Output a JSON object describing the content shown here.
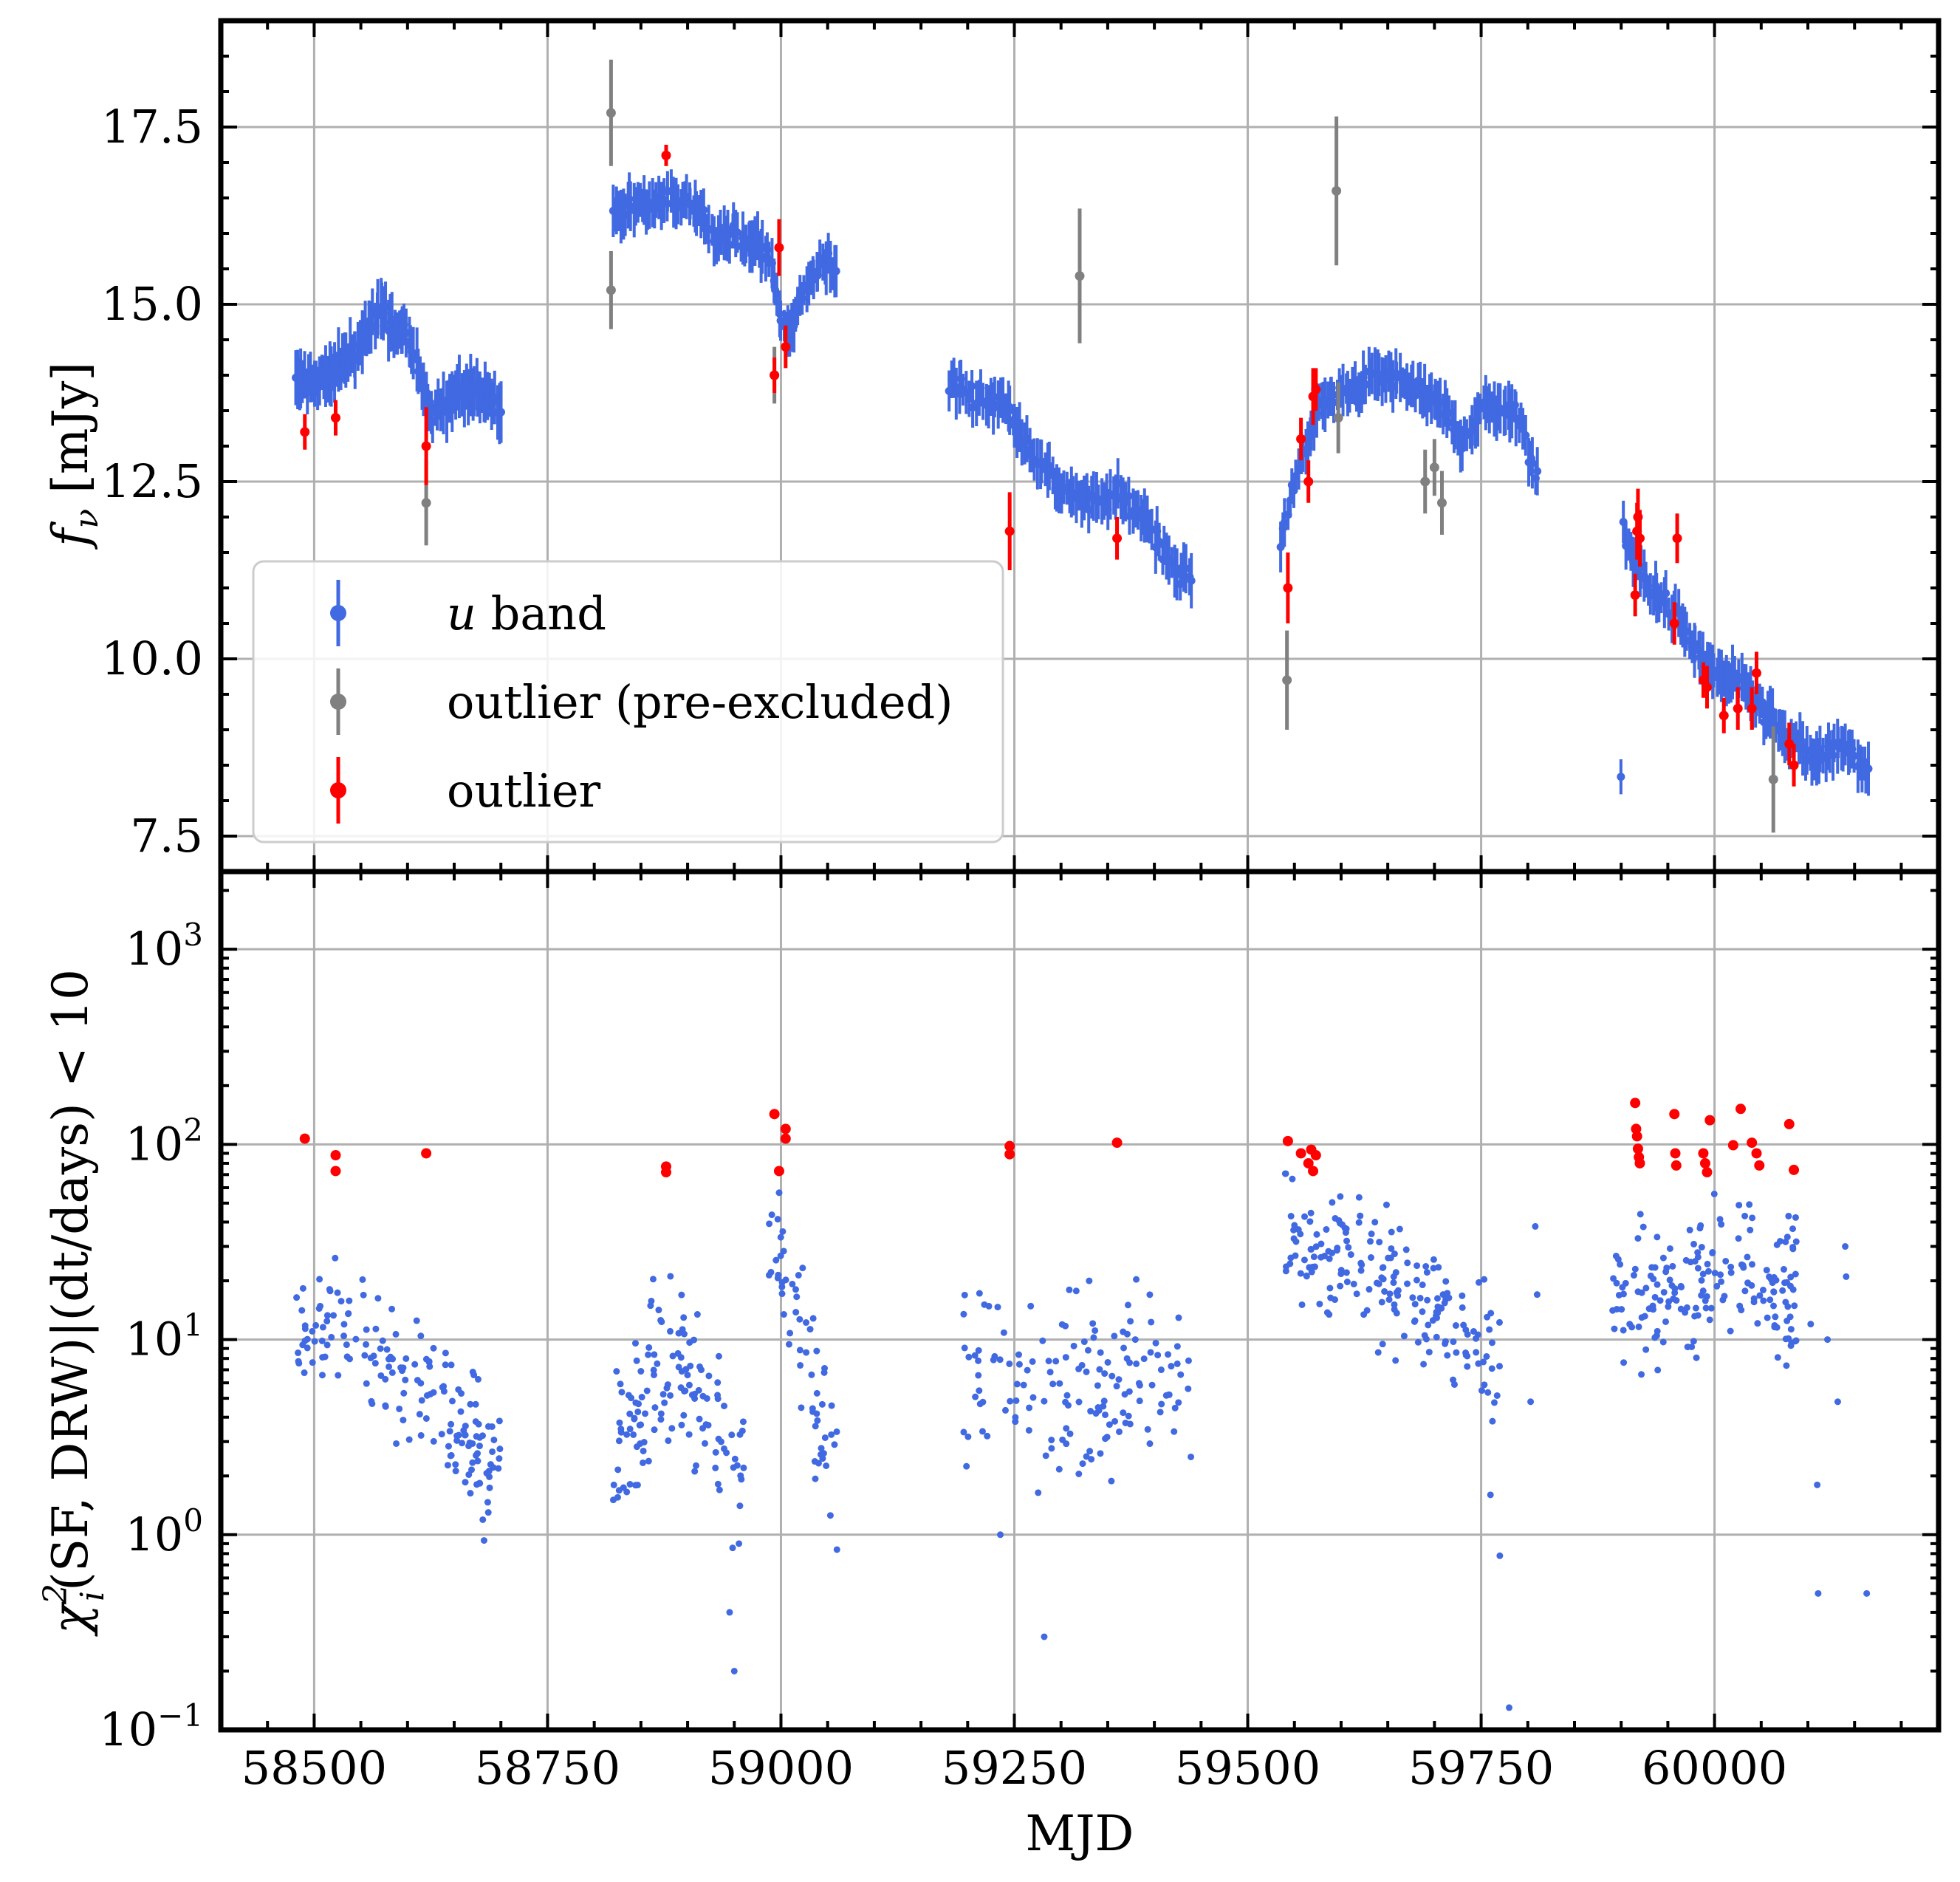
{
  "chart_data": [
    {
      "type": "scatter",
      "panel": "top",
      "ylabel_base": "f",
      "ylabel_sub": "ν",
      "ylabel_unit": "[mJy]",
      "ylim": [
        7.0,
        19.0
      ],
      "yticks": [
        7.5,
        10.0,
        12.5,
        15.0,
        17.5
      ],
      "ytick_labels": [
        "7.5",
        "10.0",
        "12.5",
        "15.0",
        "17.5"
      ],
      "grid": true,
      "legend_location": "lower-left",
      "legend": [
        {
          "label_italic": "u",
          "label": " band",
          "color": "#4169e1"
        },
        {
          "label_italic": "",
          "label": "outlier (pre-excluded)",
          "color": "#808080"
        },
        {
          "label_italic": "",
          "label": "outlier",
          "color": "#ff0000"
        }
      ],
      "segments": [
        {
          "series": "u band",
          "x0": 58480,
          "x1": 58700,
          "knots": [
            [
              58480,
              13.9
            ],
            [
              58500,
              13.9
            ],
            [
              58520,
              14.0
            ],
            [
              58545,
              14.4
            ],
            [
              58570,
              14.9
            ],
            [
              58600,
              14.5
            ],
            [
              58625,
              13.5
            ],
            [
              58650,
              13.7
            ],
            [
              58675,
              13.8
            ],
            [
              58700,
              13.5
            ]
          ],
          "err": 0.35,
          "n": 110
        },
        {
          "series": "u band",
          "x0": 58820,
          "x1": 59060,
          "knots": [
            [
              58820,
              16.3
            ],
            [
              58860,
              16.4
            ],
            [
              58900,
              16.5
            ],
            [
              58930,
              16.0
            ],
            [
              58970,
              15.9
            ],
            [
              58990,
              15.6
            ],
            [
              59000,
              14.7
            ],
            [
              59010,
              14.6
            ],
            [
              59025,
              15.2
            ],
            [
              59045,
              15.6
            ],
            [
              59060,
              15.4
            ]
          ],
          "err": 0.3,
          "n": 110
        },
        {
          "series": "u band",
          "x0": 59180,
          "x1": 59440,
          "knots": [
            [
              59180,
              13.9
            ],
            [
              59210,
              13.7
            ],
            [
              59240,
              13.6
            ],
            [
              59270,
              12.9
            ],
            [
              59300,
              12.4
            ],
            [
              59330,
              12.2
            ],
            [
              59360,
              12.3
            ],
            [
              59390,
              12.0
            ],
            [
              59420,
              11.3
            ],
            [
              59440,
              11.1
            ]
          ],
          "err": 0.3,
          "n": 100
        },
        {
          "series": "u band",
          "x0": 59535,
          "x1": 59810,
          "knots": [
            [
              59535,
              11.6
            ],
            [
              59545,
              12.2
            ],
            [
              59560,
              13.0
            ],
            [
              59580,
              13.6
            ],
            [
              59610,
              13.8
            ],
            [
              59640,
              14.0
            ],
            [
              59670,
              13.9
            ],
            [
              59700,
              13.7
            ],
            [
              59730,
              13.1
            ],
            [
              59760,
              13.6
            ],
            [
              59790,
              13.4
            ],
            [
              59810,
              12.6
            ]
          ],
          "err": 0.3,
          "n": 115
        },
        {
          "series": "u band",
          "x0": 59900,
          "x1": 60165,
          "knots": [
            [
              59900,
              11.8
            ],
            [
              59930,
              11.0
            ],
            [
              59960,
              10.6
            ],
            [
              59990,
              9.9
            ],
            [
              60020,
              9.7
            ],
            [
              60050,
              9.3
            ],
            [
              60080,
              8.8
            ],
            [
              60110,
              8.6
            ],
            [
              60140,
              8.8
            ],
            [
              60165,
              8.3
            ]
          ],
          "err": 0.3,
          "n": 110
        }
      ],
      "outliers_pre_excluded": [
        {
          "x": 58620,
          "y": 12.2,
          "err": 0.6
        },
        {
          "x": 58818,
          "y": 17.7,
          "err": 0.75
        },
        {
          "x": 58818,
          "y": 15.2,
          "err": 0.55
        },
        {
          "x": 58993,
          "y": 14.0,
          "err": 0.4
        },
        {
          "x": 59320,
          "y": 15.4,
          "err": 0.95
        },
        {
          "x": 59542,
          "y": 9.7,
          "err": 0.7
        },
        {
          "x": 59595,
          "y": 16.6,
          "err": 1.05
        },
        {
          "x": 59597,
          "y": 13.4,
          "err": 0.5
        },
        {
          "x": 59690,
          "y": 12.5,
          "err": 0.45
        },
        {
          "x": 59700,
          "y": 12.7,
          "err": 0.4
        },
        {
          "x": 59708,
          "y": 12.2,
          "err": 0.45
        },
        {
          "x": 60063,
          "y": 8.3,
          "err": 0.75
        }
      ],
      "outliers": [
        {
          "x": 58490,
          "y": 13.2,
          "err": 0.25
        },
        {
          "x": 58523,
          "y": 13.4,
          "err": 0.25
        },
        {
          "x": 58620,
          "y": 13.0,
          "err": 0.55
        },
        {
          "x": 58877,
          "y": 17.1,
          "err": 0.15
        },
        {
          "x": 58993,
          "y": 14.0,
          "err": 0.25
        },
        {
          "x": 58998,
          "y": 15.8,
          "err": 0.4
        },
        {
          "x": 59005,
          "y": 14.4,
          "err": 0.3
        },
        {
          "x": 59245,
          "y": 11.8,
          "err": 0.55
        },
        {
          "x": 59360,
          "y": 11.7,
          "err": 0.3
        },
        {
          "x": 59543,
          "y": 11.0,
          "err": 0.5
        },
        {
          "x": 59557,
          "y": 13.1,
          "err": 0.3
        },
        {
          "x": 59565,
          "y": 12.5,
          "err": 0.3
        },
        {
          "x": 59570,
          "y": 13.7,
          "err": 0.4
        },
        {
          "x": 59573,
          "y": 13.8,
          "err": 0.3
        },
        {
          "x": 59915,
          "y": 10.9,
          "err": 0.3
        },
        {
          "x": 59917,
          "y": 11.8,
          "err": 0.4
        },
        {
          "x": 59918,
          "y": 12.0,
          "err": 0.4
        },
        {
          "x": 59920,
          "y": 11.7,
          "err": 0.4
        },
        {
          "x": 59957,
          "y": 10.5,
          "err": 0.3
        },
        {
          "x": 59960,
          "y": 11.7,
          "err": 0.35
        },
        {
          "x": 59988,
          "y": 9.7,
          "err": 0.25
        },
        {
          "x": 59992,
          "y": 9.6,
          "err": 0.3
        },
        {
          "x": 60010,
          "y": 9.2,
          "err": 0.25
        },
        {
          "x": 60025,
          "y": 9.3,
          "err": 0.3
        },
        {
          "x": 60040,
          "y": 9.3,
          "err": 0.3
        },
        {
          "x": 60045,
          "y": 9.8,
          "err": 0.3
        },
        {
          "x": 60080,
          "y": 8.8,
          "err": 0.3
        },
        {
          "x": 60085,
          "y": 8.5,
          "err": 0.3
        }
      ]
    },
    {
      "type": "scatter",
      "panel": "bottom",
      "yscale": "log",
      "xlabel": "MJD",
      "ylabel_chi": "χ",
      "ylabel_sub": "i",
      "ylabel_sup": "2",
      "ylabel_rest": "(SF, DRW)|(dt/days) < 10",
      "xlim": [
        58400,
        60240
      ],
      "ylim": [
        0.1,
        2500
      ],
      "xticks": [
        58500,
        58750,
        59000,
        59250,
        59500,
        59750,
        60000
      ],
      "xtick_labels": [
        "58500",
        "58750",
        "59000",
        "59250",
        "59500",
        "59750",
        "60000"
      ],
      "ytick_base": "10",
      "ytick_exponents": [
        "−1",
        "0",
        "1",
        "2",
        "3"
      ],
      "yticks": [
        0.1,
        1,
        10,
        100,
        1000
      ],
      "grid": true,
      "clouds": [
        {
          "x0": 58480,
          "x1": 58700,
          "logCenter": [
            1.05,
            1.05,
            0.7,
            0.35
          ],
          "spread": 0.32,
          "n": 170
        },
        {
          "x0": 58820,
          "x1": 58960,
          "logCenter": [
            0.3,
            0.85,
            0.8,
            0.2
          ],
          "spread": 0.35,
          "n": 130
        },
        {
          "x0": 58985,
          "x1": 59060,
          "logCenter": [
            1.6,
            1.3,
            0.7,
            0.3
          ],
          "spread": 0.3,
          "n": 60
        },
        {
          "x0": 59195,
          "x1": 59440,
          "logCenter": [
            0.75,
            0.8,
            0.8,
            0.85
          ],
          "spread": 0.4,
          "n": 150
        },
        {
          "x0": 59540,
          "x1": 59770,
          "logCenter": [
            1.55,
            1.35,
            1.2,
            0.9
          ],
          "spread": 0.28,
          "n": 190
        },
        {
          "x0": 59890,
          "x1": 60090,
          "logCenter": [
            1.2,
            1.25,
            1.4,
            1.2
          ],
          "spread": 0.3,
          "n": 180
        }
      ],
      "sparse_points": [
        {
          "x": 59235,
          "y": 1.0
        },
        {
          "x": 59282,
          "y": 0.3
        },
        {
          "x": 59760,
          "y": 1.6
        },
        {
          "x": 59770,
          "y": 0.78
        },
        {
          "x": 59780,
          "y": 0.13
        },
        {
          "x": 59803,
          "y": 4.8
        },
        {
          "x": 59808,
          "y": 38
        },
        {
          "x": 59810,
          "y": 17
        },
        {
          "x": 60103,
          "y": 12
        },
        {
          "x": 60110,
          "y": 1.8
        },
        {
          "x": 60111,
          "y": 0.5
        },
        {
          "x": 60121,
          "y": 10
        },
        {
          "x": 60132,
          "y": 4.8
        },
        {
          "x": 60140,
          "y": 30
        },
        {
          "x": 60141,
          "y": 21
        },
        {
          "x": 60163,
          "y": 0.5
        },
        {
          "x": 58950,
          "y": 0.2
        },
        {
          "x": 58945,
          "y": 0.4
        },
        {
          "x": 58955,
          "y": 0.9
        },
        {
          "x": 58960,
          "y": 2.2
        }
      ],
      "outliers": [
        {
          "x": 58490,
          "y": 107
        },
        {
          "x": 58523,
          "y": 88
        },
        {
          "x": 58523,
          "y": 73
        },
        {
          "x": 58620,
          "y": 90
        },
        {
          "x": 58877,
          "y": 77
        },
        {
          "x": 58877,
          "y": 72
        },
        {
          "x": 58993,
          "y": 143
        },
        {
          "x": 58998,
          "y": 73
        },
        {
          "x": 59005,
          "y": 120
        },
        {
          "x": 59005,
          "y": 107
        },
        {
          "x": 59245,
          "y": 98
        },
        {
          "x": 59245,
          "y": 89
        },
        {
          "x": 59360,
          "y": 102
        },
        {
          "x": 59543,
          "y": 104
        },
        {
          "x": 59557,
          "y": 90
        },
        {
          "x": 59565,
          "y": 80
        },
        {
          "x": 59568,
          "y": 94
        },
        {
          "x": 59570,
          "y": 73
        },
        {
          "x": 59573,
          "y": 88
        },
        {
          "x": 59915,
          "y": 163
        },
        {
          "x": 59916,
          "y": 120
        },
        {
          "x": 59917,
          "y": 110
        },
        {
          "x": 59918,
          "y": 95
        },
        {
          "x": 59919,
          "y": 86
        },
        {
          "x": 59920,
          "y": 80
        },
        {
          "x": 59957,
          "y": 143
        },
        {
          "x": 59958,
          "y": 90
        },
        {
          "x": 59959,
          "y": 78
        },
        {
          "x": 59988,
          "y": 90
        },
        {
          "x": 59990,
          "y": 80
        },
        {
          "x": 59992,
          "y": 72
        },
        {
          "x": 59995,
          "y": 133
        },
        {
          "x": 60020,
          "y": 99
        },
        {
          "x": 60028,
          "y": 152
        },
        {
          "x": 60040,
          "y": 102
        },
        {
          "x": 60045,
          "y": 90
        },
        {
          "x": 60048,
          "y": 78
        },
        {
          "x": 60080,
          "y": 127
        },
        {
          "x": 60085,
          "y": 74
        }
      ]
    }
  ],
  "colors": {
    "u_band": "#4169e1",
    "pre_excluded": "#808080",
    "outlier": "#ff0000"
  }
}
